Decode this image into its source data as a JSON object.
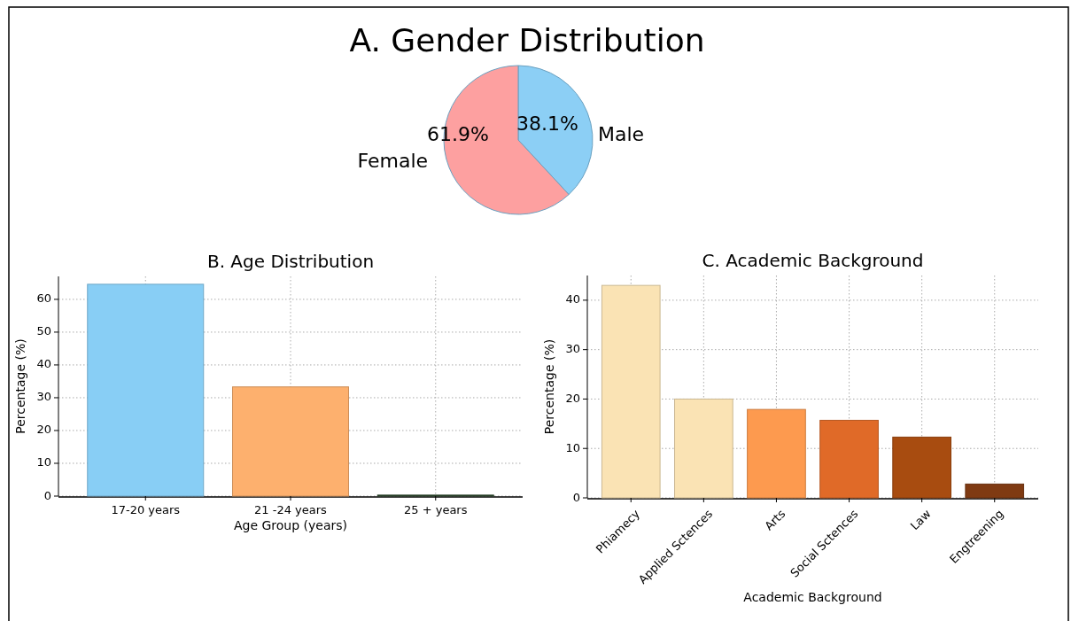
{
  "chart_data": [
    {
      "type": "pie",
      "title": "A. Gender Distribution",
      "categories": [
        "Male",
        "Female"
      ],
      "values": [
        38.1,
        61.9
      ],
      "colors": [
        "#8ccff5",
        "#fda0a0"
      ],
      "value_labels": [
        "38.1%",
        "61.9%"
      ]
    },
    {
      "type": "bar",
      "title": "B. Age Distribution",
      "xlabel": "Age Group (years)",
      "ylabel": "Percentage (%)",
      "categories": [
        "17-20 years",
        "21 -24 years",
        "25 + years"
      ],
      "values": [
        64.6,
        33.3,
        0.3
      ],
      "colors": [
        "#88cef5",
        "#fdb06e",
        "#2e4a2e"
      ],
      "ylim": [
        0,
        67
      ],
      "yticks": [
        0,
        10,
        20,
        30,
        40,
        50,
        60
      ],
      "grid": true
    },
    {
      "type": "bar",
      "title": "C. Academic Background",
      "xlabel": "Academic Background",
      "ylabel": "Percentage (%)",
      "categories": [
        "Phiamecy",
        "Applied Sctences",
        "Arts",
        "Social Sctences",
        "Law",
        "Engtreening"
      ],
      "values": [
        43.0,
        20.0,
        17.9,
        15.7,
        12.3,
        2.8
      ],
      "colors": [
        "#fae3b4",
        "#fae3b4",
        "#fd9a4f",
        "#e06a28",
        "#a84c10",
        "#7f3a12"
      ],
      "ylim": [
        0,
        45
      ],
      "yticks": [
        0,
        10,
        20,
        30,
        40
      ],
      "grid": true
    }
  ]
}
